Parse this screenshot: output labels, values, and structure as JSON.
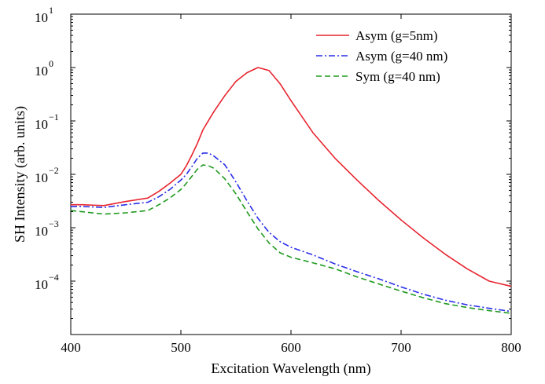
{
  "chart_data": {
    "type": "line",
    "xlabel": "Excitation Wavelength (nm)",
    "ylabel": "SH Intensity (arb. units)",
    "xlim": [
      400,
      800
    ],
    "ylim": [
      1e-05,
      10
    ],
    "yscale": "log",
    "grid": false,
    "legend_position": "top-right",
    "x_ticks": [
      {
        "value": 400,
        "label": "400"
      },
      {
        "value": 500,
        "label": "500"
      },
      {
        "value": 600,
        "label": "600"
      },
      {
        "value": 700,
        "label": "700"
      },
      {
        "value": 800,
        "label": "800"
      }
    ],
    "y_ticks": [
      {
        "exp": -4,
        "base": "10",
        "power": "−4"
      },
      {
        "exp": -3,
        "base": "10",
        "power": "−3"
      },
      {
        "exp": -2,
        "base": "10",
        "power": "−2"
      },
      {
        "exp": -1,
        "base": "10",
        "power": "−1"
      },
      {
        "exp": 0,
        "base": "10",
        "power": "0"
      },
      {
        "exp": 1,
        "base": "10",
        "power": "1"
      }
    ],
    "series": [
      {
        "name": "Asym (g=5nm)",
        "color": "#e8242f",
        "dash": "solid",
        "x": [
          400,
          410,
          430,
          450,
          470,
          480,
          490,
          500,
          505,
          510,
          515,
          520,
          530,
          540,
          550,
          560,
          570,
          580,
          590,
          600,
          620,
          640,
          660,
          680,
          700,
          720,
          740,
          760,
          780,
          800
        ],
        "y": [
          0.0027,
          0.0027,
          0.0026,
          0.0031,
          0.0036,
          0.0048,
          0.0068,
          0.01,
          0.0145,
          0.023,
          0.038,
          0.068,
          0.15,
          0.3,
          0.55,
          0.8,
          1.0,
          0.88,
          0.5,
          0.24,
          0.06,
          0.02,
          0.0078,
          0.0032,
          0.0014,
          0.00065,
          0.00032,
          0.00017,
          0.0001,
          8e-05
        ]
      },
      {
        "name": "Asym (g=40 nm)",
        "color": "#2a2ee8",
        "dash": "dashdot",
        "x": [
          400,
          410,
          430,
          450,
          470,
          480,
          490,
          500,
          505,
          510,
          515,
          520,
          525,
          530,
          540,
          550,
          560,
          570,
          580,
          590,
          600,
          620,
          640,
          660,
          680,
          700,
          720,
          740,
          760,
          780,
          800
        ],
        "y": [
          0.0025,
          0.0025,
          0.0024,
          0.0027,
          0.003,
          0.0038,
          0.0052,
          0.0078,
          0.01,
          0.014,
          0.02,
          0.025,
          0.025,
          0.022,
          0.015,
          0.0072,
          0.0032,
          0.0015,
          0.00082,
          0.00055,
          0.00043,
          0.00031,
          0.00021,
          0.00015,
          0.00011,
          7.8e-05,
          5.7e-05,
          4.4e-05,
          3.6e-05,
          3.1e-05,
          2.7e-05
        ]
      },
      {
        "name": "Sym (g=40 nm)",
        "color": "#1f9a1f",
        "dash": "dashed",
        "x": [
          400,
          410,
          430,
          450,
          470,
          480,
          490,
          500,
          505,
          510,
          515,
          520,
          525,
          530,
          540,
          550,
          560,
          570,
          580,
          590,
          600,
          620,
          640,
          660,
          680,
          700,
          720,
          740,
          760,
          780,
          800
        ],
        "y": [
          0.0021,
          0.002,
          0.0018,
          0.0019,
          0.0021,
          0.0027,
          0.0036,
          0.0052,
          0.0068,
          0.0092,
          0.0125,
          0.015,
          0.0145,
          0.013,
          0.0082,
          0.0043,
          0.002,
          0.00095,
          0.00052,
          0.00034,
          0.00028,
          0.00022,
          0.00017,
          0.00012,
          8.8e-05,
          6.5e-05,
          4.9e-05,
          3.8e-05,
          3.2e-05,
          2.8e-05,
          2.5e-05
        ]
      }
    ]
  }
}
